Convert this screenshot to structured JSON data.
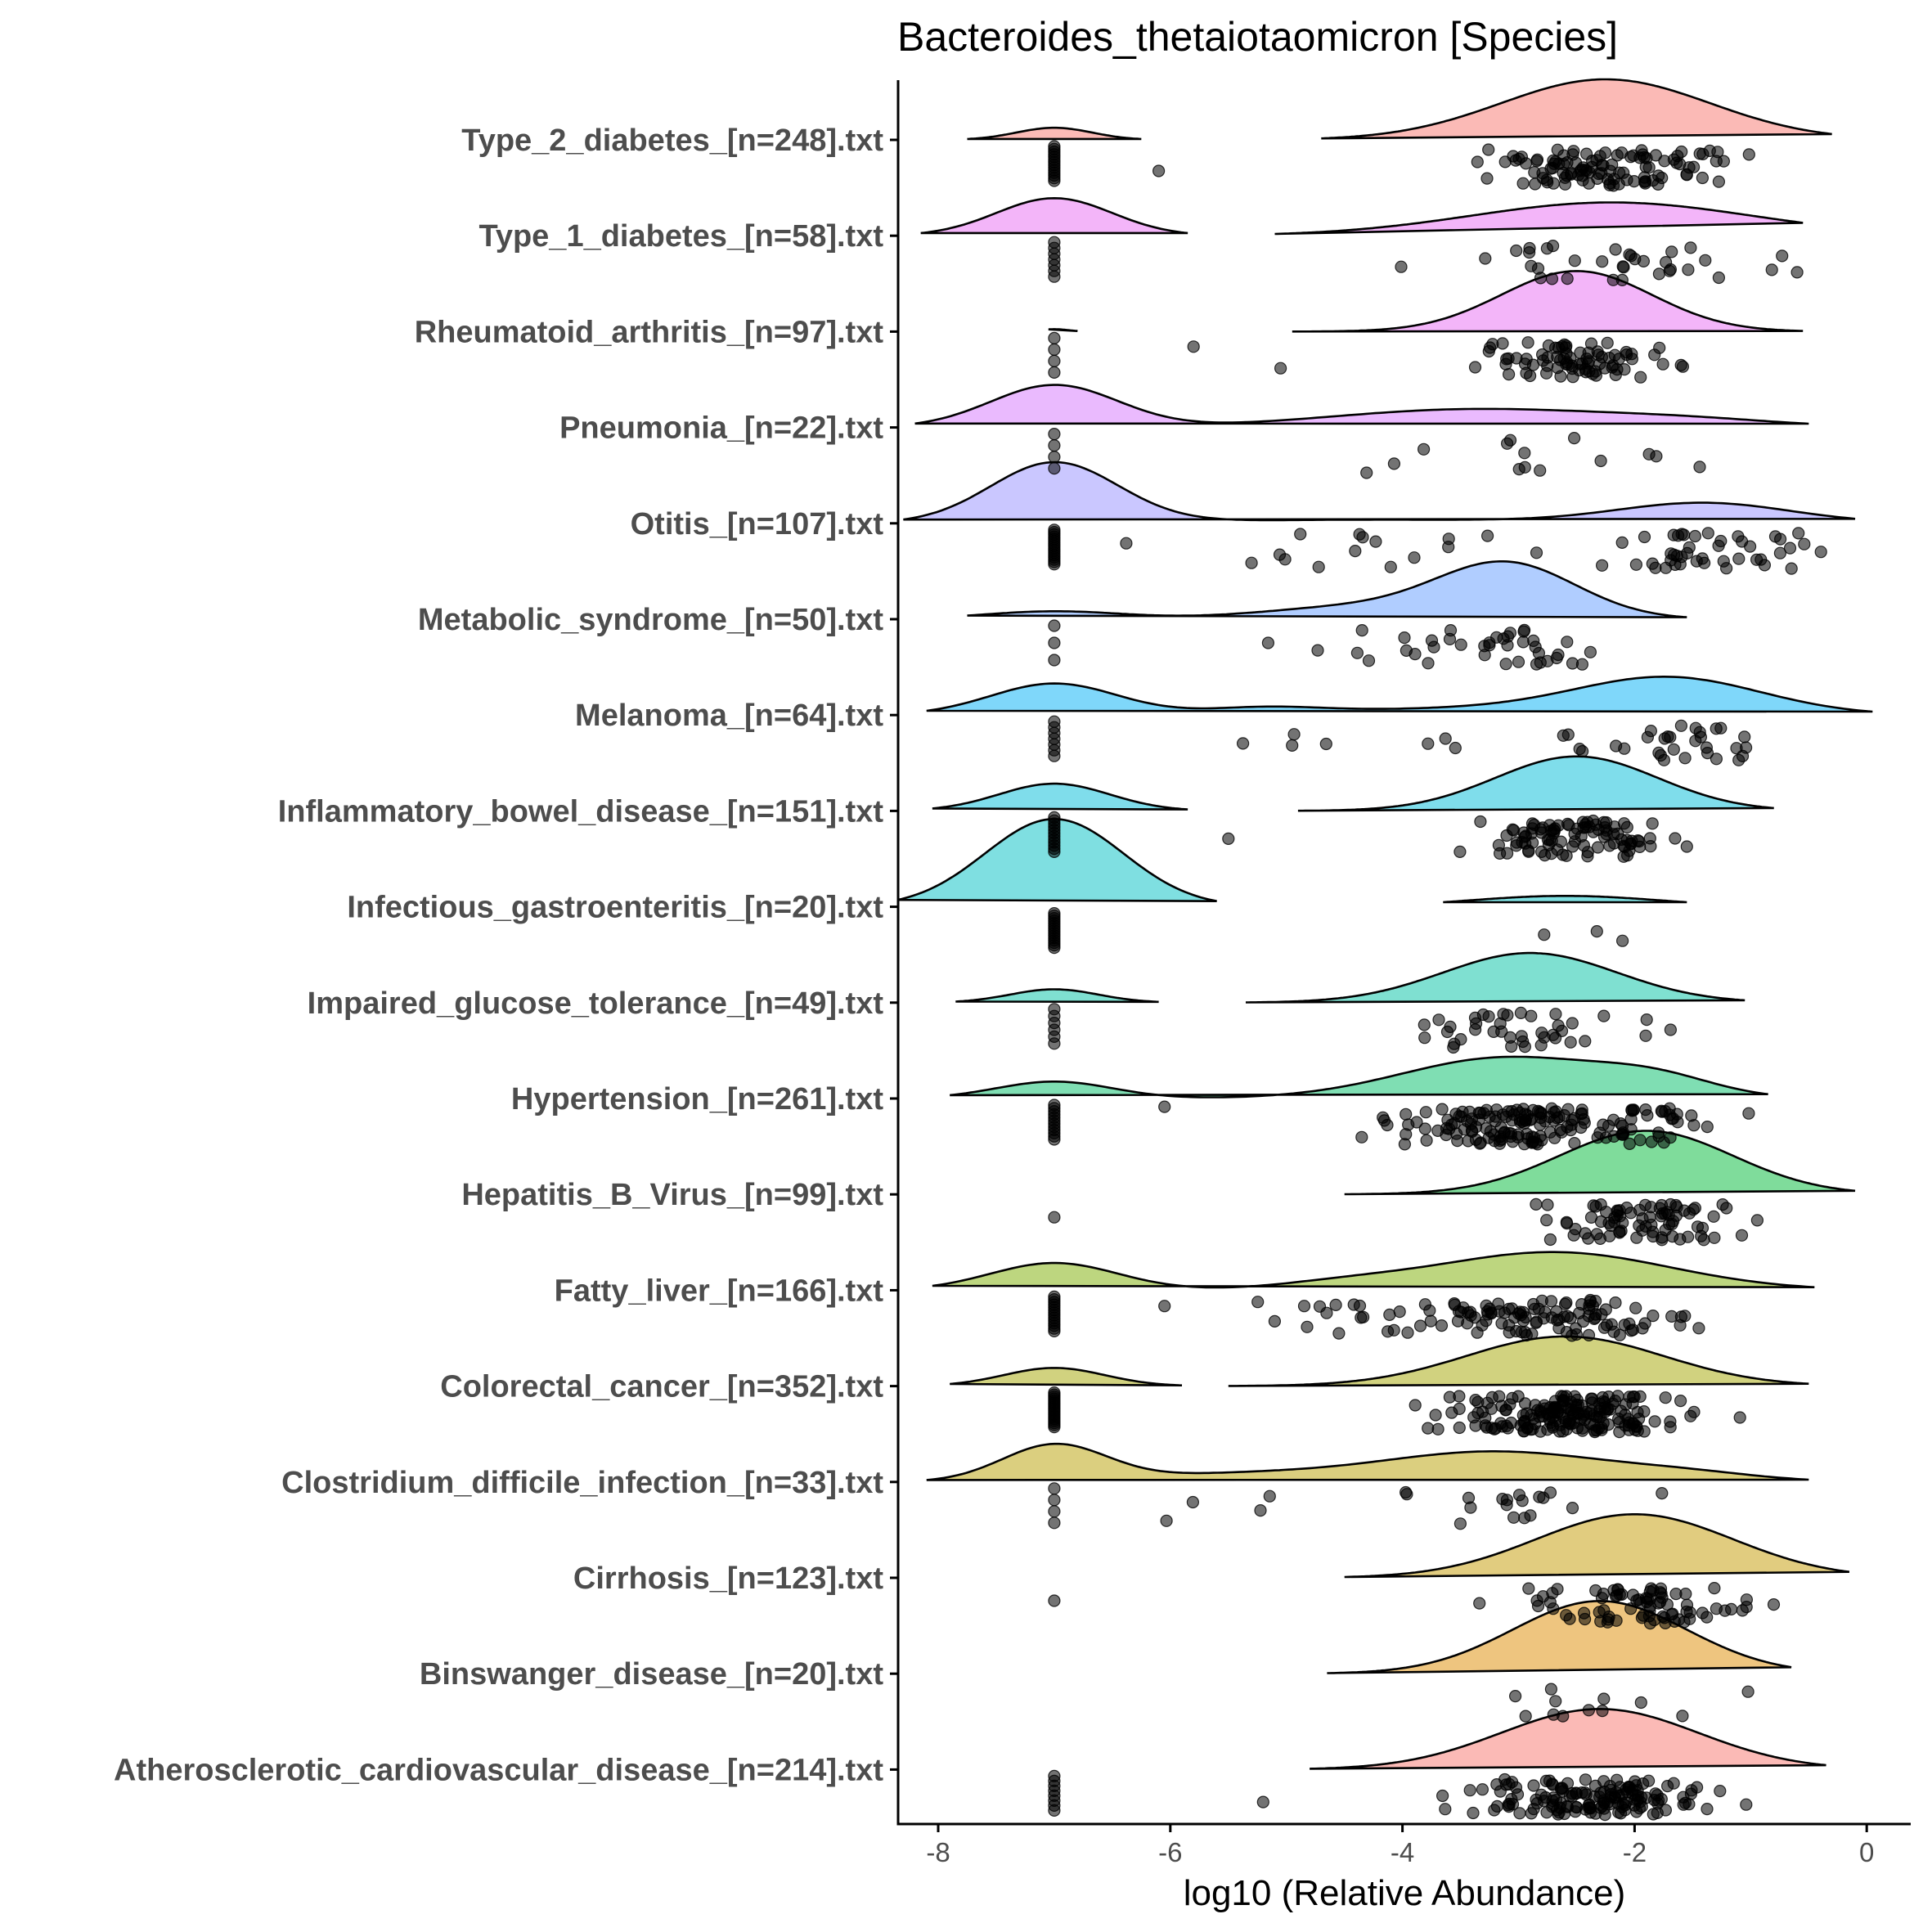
{
  "chart_data": {
    "type": "ridgeline",
    "title": "Bacteroides_thetaiotaomicron [Species]",
    "xlabel": "log10 (Relative Abundance)",
    "ylabel": "",
    "xlim": [
      -8.4,
      0.5
    ],
    "xticks": [
      -8,
      -6,
      -4,
      -2,
      0
    ],
    "xtick_labels": [
      "-8",
      "-6",
      "-4",
      "-2",
      "0"
    ],
    "legend": "none",
    "grid": false,
    "series": [
      {
        "name": "Type_2_diabetes_[n=248].txt",
        "color": "#F8766D",
        "range": [
          -4.7,
          -0.3
        ],
        "zero_range": [
          -7.75,
          -6.25
        ],
        "zero_peak": 0.2,
        "modes": [
          [
            -2.25,
            0.9,
            1.0
          ]
        ],
        "points_n": 110,
        "zeros_n": 14,
        "out": [
          -6.1
        ]
      },
      {
        "name": "Type_1_diabetes_[n=58].txt",
        "color": "#E76BF3",
        "range": [
          -5.1,
          -0.55
        ],
        "zero_range": [
          -8.15,
          -5.85
        ],
        "zero_peak": 0.62,
        "modes": [
          [
            -2.2,
            1.2,
            0.55
          ]
        ],
        "points_n": 35,
        "zeros_n": 7,
        "out": []
      },
      {
        "name": "Rheumatoid_arthritis_[n=97].txt",
        "color": "#E76BF3",
        "range": [
          -4.95,
          -0.55
        ],
        "zero_range": [
          -7.05,
          -6.8
        ],
        "zero_peak": 0.04,
        "modes": [
          [
            -2.5,
            0.65,
            1.0
          ]
        ],
        "points_n": 80,
        "zeros_n": 4,
        "out": [
          -5.8,
          -5.05
        ]
      },
      {
        "name": "Pneumonia_[n=22].txt",
        "color": "#D575FE",
        "range": [
          -8.2,
          -0.5
        ],
        "zero_range": null,
        "zero_peak": 0,
        "modes": [
          [
            -7.0,
            0.55,
            0.7
          ],
          [
            -3.4,
            1.2,
            0.3
          ],
          [
            -1.5,
            0.8,
            0.1
          ]
        ],
        "points_n": 14,
        "zeros_n": 4,
        "out": []
      },
      {
        "name": "Otitis_[n=107].txt",
        "color": "#9590FF",
        "range": [
          -8.3,
          -0.1
        ],
        "zero_range": null,
        "zero_peak": 0,
        "modes": [
          [
            -7.0,
            0.55,
            1.0
          ],
          [
            -1.4,
            0.75,
            0.33
          ],
          [
            -4.2,
            1.5,
            0.06
          ]
        ],
        "points_n": 60,
        "zeros_n": 16,
        "out": []
      },
      {
        "name": "Metabolic_syndrome_[n=50].txt",
        "color": "#619CFF",
        "range": [
          -7.75,
          -1.55
        ],
        "zero_range": null,
        "zero_peak": 0,
        "modes": [
          [
            -3.1,
            0.6,
            0.9
          ],
          [
            -7.0,
            0.6,
            0.13
          ],
          [
            -4.4,
            0.8,
            0.2
          ]
        ],
        "points_n": 40,
        "zeros_n": 3,
        "out": []
      },
      {
        "name": "Melanoma_[n=64].txt",
        "color": "#00B0F6",
        "range": [
          -8.1,
          0.05
        ],
        "zero_range": null,
        "zero_peak": 0,
        "modes": [
          [
            -7.0,
            0.55,
            0.52
          ],
          [
            -1.7,
            0.8,
            0.6
          ],
          [
            -5.2,
            0.5,
            0.1
          ],
          [
            -3.5,
            1.2,
            0.1
          ]
        ],
        "points_n": 38,
        "zeros_n": 7,
        "out": []
      },
      {
        "name": "Inflammatory_bowel_disease_[n=151].txt",
        "color": "#00BCD8",
        "range": [
          -4.9,
          -0.8
        ],
        "zero_range": [
          -8.05,
          -5.85
        ],
        "zero_peak": 0.45,
        "modes": [
          [
            -2.5,
            0.7,
            0.9
          ]
        ],
        "points_n": 95,
        "zeros_n": 12,
        "out": [
          -5.5
        ]
      },
      {
        "name": "Infectious_gastroenteritis_[n=20].txt",
        "color": "#00BFC4",
        "range": [
          -3.65,
          -1.55
        ],
        "zero_range": [
          -8.35,
          -5.6
        ],
        "zero_peak": 1.45,
        "modes": [
          [
            -2.6,
            0.8,
            0.18
          ]
        ],
        "points_n": 3,
        "zeros_n": 15,
        "out": []
      },
      {
        "name": "Impaired_glucose_tolerance_[n=49].txt",
        "color": "#00C1A3",
        "range": [
          -5.35,
          -1.05
        ],
        "zero_range": [
          -7.85,
          -6.1
        ],
        "zero_peak": 0.22,
        "modes": [
          [
            -2.9,
            0.75,
            0.82
          ]
        ],
        "points_n": 40,
        "zeros_n": 6,
        "out": []
      },
      {
        "name": "Hypertension_[n=261].txt",
        "color": "#00BE67",
        "range": [
          -7.9,
          -0.85
        ],
        "zero_range": null,
        "zero_peak": 0,
        "modes": [
          [
            -3.1,
            0.9,
            0.68
          ],
          [
            -7.0,
            0.5,
            0.28
          ],
          [
            -1.8,
            0.5,
            0.25
          ]
        ],
        "points_n": 170,
        "zeros_n": 12,
        "out": [
          -6.05
        ]
      },
      {
        "name": "Hepatitis_B_Virus_[n=99].txt",
        "color": "#00BA38",
        "range": [
          -4.5,
          -0.1
        ],
        "zero_range": null,
        "zero_peak": 0,
        "modes": [
          [
            -1.9,
            0.75,
            1.05
          ]
        ],
        "points_n": 80,
        "zeros_n": 1,
        "out": []
      },
      {
        "name": "Fatty_liver_[n=166].txt",
        "color": "#7CAE00",
        "range": [
          -8.05,
          -0.45
        ],
        "zero_range": null,
        "zero_peak": 0,
        "modes": [
          [
            -7.0,
            0.55,
            0.45
          ],
          [
            -2.7,
            1.0,
            0.63
          ],
          [
            -4.5,
            0.6,
            0.1
          ]
        ],
        "points_n": 120,
        "zeros_n": 14,
        "out": [
          -6.05
        ]
      },
      {
        "name": "Colorectal_cancer_[n=352].txt",
        "color": "#A3A500",
        "range": [
          -5.5,
          -0.5
        ],
        "zero_range": [
          -7.9,
          -5.9
        ],
        "zero_peak": 0.3,
        "modes": [
          [
            -2.6,
            0.85,
            0.82
          ]
        ],
        "points_n": 190,
        "zeros_n": 18,
        "out": []
      },
      {
        "name": "Clostridium_difficile_infection_[n=33].txt",
        "color": "#B79F00",
        "range": [
          -8.1,
          -0.5
        ],
        "zero_range": null,
        "zero_peak": 0,
        "modes": [
          [
            -7.0,
            0.45,
            0.6
          ],
          [
            -3.2,
            1.0,
            0.5
          ],
          [
            -1.5,
            0.6,
            0.1
          ],
          [
            -5.5,
            0.9,
            0.12
          ]
        ],
        "points_n": 22,
        "zeros_n": 4,
        "out": []
      },
      {
        "name": "Cirrhosis_[n=123].txt",
        "color": "#C49A00",
        "range": [
          -4.5,
          -0.15
        ],
        "zero_range": null,
        "zero_peak": 0,
        "modes": [
          [
            -2.0,
            0.85,
            1.05
          ]
        ],
        "points_n": 80,
        "zeros_n": 1,
        "out": []
      },
      {
        "name": "Binswanger_disease_[n=20].txt",
        "color": "#DE8C00",
        "range": [
          -4.65,
          -0.65
        ],
        "zero_range": null,
        "zero_peak": 0,
        "modes": [
          [
            -2.3,
            0.75,
            1.2
          ]
        ],
        "points_n": 12,
        "zeros_n": 0,
        "out": []
      },
      {
        "name": "Atherosclerotic_cardiovascular_disease_[n=214].txt",
        "color": "#F8766D",
        "range": [
          -4.8,
          -0.35
        ],
        "zero_range": null,
        "zero_peak": 0,
        "modes": [
          [
            -2.3,
            0.85,
            1.0
          ]
        ],
        "points_n": 150,
        "zeros_n": 8,
        "out": [
          -5.2
        ]
      }
    ]
  }
}
